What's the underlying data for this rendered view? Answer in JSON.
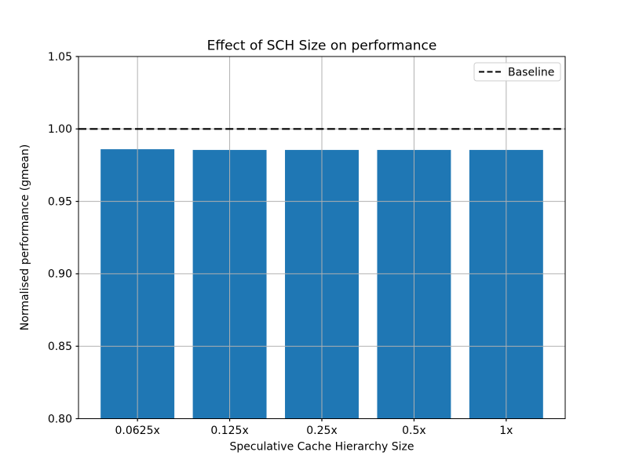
{
  "chart_data": {
    "type": "bar",
    "title": "Effect of SCH Size on performance",
    "xlabel": "Speculative Cache Hierarchy Size",
    "ylabel": "Normalised performance (gmean)",
    "categories": [
      "0.0625x",
      "0.125x",
      "0.25x",
      "0.5x",
      "1x"
    ],
    "values": [
      0.986,
      0.9855,
      0.9855,
      0.9855,
      0.9855
    ],
    "ylim": [
      0.8,
      1.05
    ],
    "yticks": [
      0.8,
      0.85,
      0.9,
      0.95,
      1.0,
      1.05
    ],
    "ytick_labels": [
      "0.80",
      "0.85",
      "0.90",
      "0.95",
      "1.00",
      "1.05"
    ],
    "grid": true,
    "grid_color": "#b0b0b0",
    "bar_color": "#1f77b4",
    "baseline": {
      "value": 1.0,
      "label": "Baseline",
      "color": "#000000",
      "style": "dashed"
    },
    "legend_position": "upper right"
  }
}
